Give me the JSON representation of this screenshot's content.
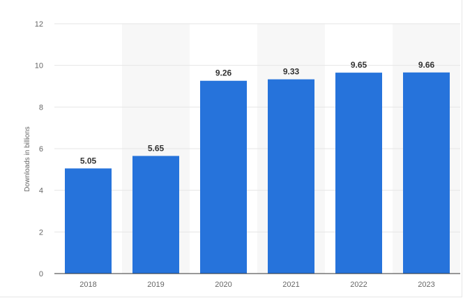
{
  "chart_data": {
    "type": "bar",
    "categories": [
      "2018",
      "2019",
      "2020",
      "2021",
      "2022",
      "2023"
    ],
    "values": [
      5.05,
      5.65,
      9.26,
      9.33,
      9.65,
      9.66
    ],
    "value_labels": [
      "5.05",
      "5.65",
      "9.26",
      "9.33",
      "9.65",
      "9.66"
    ],
    "ylabel": "Downloads in billions",
    "xlabel": "",
    "title": "",
    "ylim": [
      0,
      12
    ],
    "yticks": [
      0,
      2,
      4,
      6,
      8,
      10,
      12
    ],
    "ytick_labels": [
      "0",
      "2",
      "4",
      "6",
      "8",
      "10",
      "12"
    ],
    "grid": true,
    "bar_color": "#2673DB",
    "alternating_band_color": "#F7F7F7",
    "gridline_color": "#E6E6E6"
  }
}
